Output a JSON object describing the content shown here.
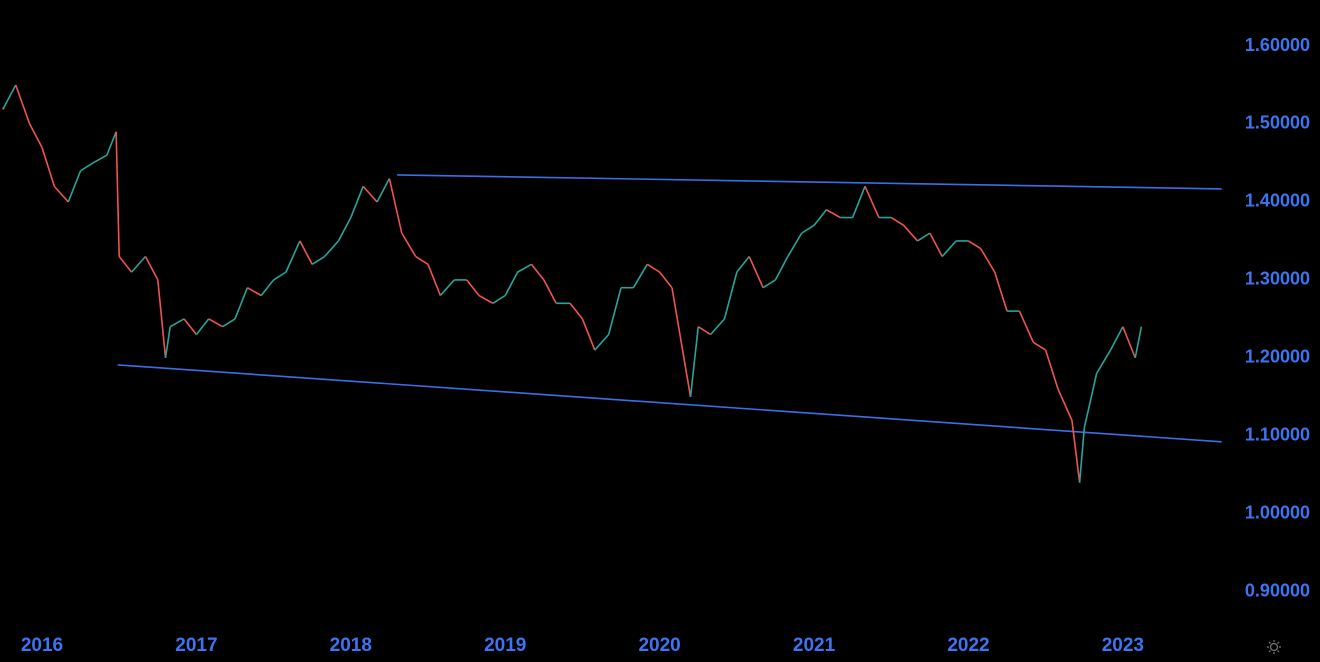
{
  "chart_data": {
    "type": "line",
    "x": [
      2015.75,
      2015.83,
      2015.92,
      2016.0,
      2016.08,
      2016.17,
      2016.25,
      2016.33,
      2016.42,
      2016.48,
      2016.5,
      2016.58,
      2016.67,
      2016.75,
      2016.8,
      2016.83,
      2016.92,
      2017.0,
      2017.08,
      2017.17,
      2017.25,
      2017.33,
      2017.42,
      2017.5,
      2017.58,
      2017.67,
      2017.75,
      2017.83,
      2017.92,
      2018.0,
      2018.08,
      2018.17,
      2018.25,
      2018.33,
      2018.42,
      2018.5,
      2018.58,
      2018.67,
      2018.75,
      2018.83,
      2018.92,
      2019.0,
      2019.08,
      2019.17,
      2019.25,
      2019.33,
      2019.42,
      2019.5,
      2019.58,
      2019.67,
      2019.75,
      2019.83,
      2019.92,
      2020.0,
      2020.08,
      2020.2,
      2020.25,
      2020.33,
      2020.42,
      2020.5,
      2020.58,
      2020.67,
      2020.75,
      2020.83,
      2020.92,
      2021.0,
      2021.08,
      2021.17,
      2021.25,
      2021.33,
      2021.42,
      2021.5,
      2021.58,
      2021.67,
      2021.75,
      2021.83,
      2021.92,
      2022.0,
      2022.08,
      2022.17,
      2022.25,
      2022.33,
      2022.42,
      2022.5,
      2022.58,
      2022.67,
      2022.72,
      2022.75,
      2022.83,
      2022.92,
      2023.0,
      2023.08,
      2023.12
    ],
    "series": [
      {
        "up_color": "#26a69a",
        "down_color": "#ef5350",
        "values": [
          1.52,
          1.55,
          1.5,
          1.47,
          1.42,
          1.4,
          1.44,
          1.45,
          1.46,
          1.49,
          1.33,
          1.31,
          1.33,
          1.3,
          1.2,
          1.24,
          1.25,
          1.23,
          1.25,
          1.24,
          1.25,
          1.29,
          1.28,
          1.3,
          1.31,
          1.35,
          1.32,
          1.33,
          1.35,
          1.38,
          1.42,
          1.4,
          1.43,
          1.36,
          1.33,
          1.32,
          1.28,
          1.3,
          1.3,
          1.28,
          1.27,
          1.28,
          1.31,
          1.32,
          1.3,
          1.27,
          1.27,
          1.25,
          1.21,
          1.23,
          1.29,
          1.29,
          1.32,
          1.31,
          1.29,
          1.15,
          1.24,
          1.23,
          1.25,
          1.31,
          1.33,
          1.29,
          1.3,
          1.33,
          1.36,
          1.37,
          1.39,
          1.38,
          1.38,
          1.42,
          1.38,
          1.38,
          1.37,
          1.35,
          1.36,
          1.33,
          1.35,
          1.35,
          1.34,
          1.31,
          1.26,
          1.26,
          1.22,
          1.21,
          1.16,
          1.12,
          1.04,
          1.11,
          1.18,
          1.21,
          1.24,
          1.2,
          1.24
        ]
      }
    ],
    "trend_lines": [
      {
        "color": "#3a6fe8",
        "x": [
          2018.3,
          2023.64
        ],
        "y": [
          1.4346,
          1.4167
        ]
      },
      {
        "color": "#3a6fe8",
        "x": [
          2016.49,
          2023.64
        ],
        "y": [
          1.191,
          1.0923
        ]
      }
    ],
    "xlim": [
      2015.728,
      2023.642
    ],
    "xticks": [
      2016,
      2017,
      2018,
      2019,
      2020,
      2021,
      2022,
      2023
    ],
    "ylim": [
      0.851,
      1.659
    ],
    "yticks": [
      {
        "value": 0.9,
        "label": "0.90000"
      },
      {
        "value": 1.0,
        "label": "1.00000"
      },
      {
        "value": 1.1,
        "label": "1.10000"
      },
      {
        "value": 1.2,
        "label": "1.20000"
      },
      {
        "value": 1.3,
        "label": "1.30000"
      },
      {
        "value": 1.4,
        "label": "1.40000"
      },
      {
        "value": 1.5,
        "label": "1.50000"
      },
      {
        "value": 1.6,
        "label": "1.60000"
      }
    ],
    "axis_color": "#3d74f0"
  }
}
